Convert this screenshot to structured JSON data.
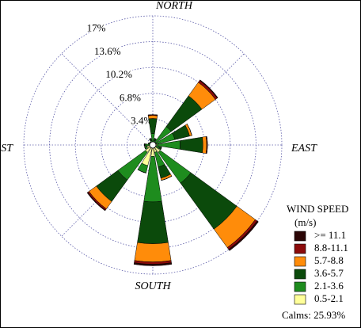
{
  "chart_data": {
    "type": "windrose",
    "categories": [
      "NORTH",
      null,
      null,
      null,
      "EAST",
      null,
      null,
      null,
      "SOUTH",
      null,
      null,
      null,
      "WEST",
      null,
      null,
      null
    ],
    "series": [
      {
        "name": "0.5-2.1",
        "color": "#ffff99",
        "values": [
          0.3,
          0.3,
          0.5,
          0.5,
          0.6,
          0.4,
          1.2,
          1.0,
          1.5,
          2.8,
          1.2,
          0.8,
          0.4,
          0.3,
          0.3,
          0.3
        ]
      },
      {
        "name": "2.1-3.6",
        "color": "#1e8c1e",
        "values": [
          1.2,
          0.3,
          2.5,
          2.5,
          3.0,
          0.5,
          5.0,
          2.0,
          6.0,
          1.0,
          4.5,
          0.3,
          0.5,
          0.3,
          0.2,
          0.3
        ]
      },
      {
        "name": "3.6-5.7",
        "color": "#0b4a0b",
        "values": [
          2.0,
          0.3,
          5.0,
          2.0,
          3.0,
          0.3,
          7.5,
          1.5,
          5.5,
          0,
          3.5,
          0,
          0.2,
          0,
          0,
          0.3
        ]
      },
      {
        "name": "5.7-8.8",
        "color": "#ff8c0a",
        "values": [
          0.4,
          0,
          2.2,
          0.3,
          0.5,
          0,
          3.0,
          0.3,
          2.4,
          0,
          1.2,
          0,
          0,
          0,
          0,
          0
        ]
      },
      {
        "name": "8.8-11.1",
        "color": "#8b0a0a",
        "values": [
          0.1,
          0,
          0.3,
          0,
          0.1,
          0,
          0.3,
          0,
          0.3,
          0,
          0.2,
          0,
          0,
          0,
          0,
          0
        ]
      },
      {
        "name": ">= 11.1",
        "color": "#2b0505",
        "values": [
          0,
          0,
          0.1,
          0,
          0,
          0,
          0.2,
          0,
          0.2,
          0,
          0.1,
          0,
          0,
          0,
          0,
          0
        ]
      }
    ],
    "rlim": [
      0,
      17
    ],
    "rticks": [
      {
        "value": 3.4,
        "label": "3.4%"
      },
      {
        "value": 6.8,
        "label": "6.8%"
      },
      {
        "value": 10.2,
        "label": "10.2%"
      },
      {
        "value": 13.6,
        "label": "13.6%"
      },
      {
        "value": 17,
        "label": "17%"
      }
    ],
    "legend_title": "WIND SPEED",
    "legend_unit": "(m/s)",
    "annotation": "Calms: 25.93%",
    "grid": true
  }
}
